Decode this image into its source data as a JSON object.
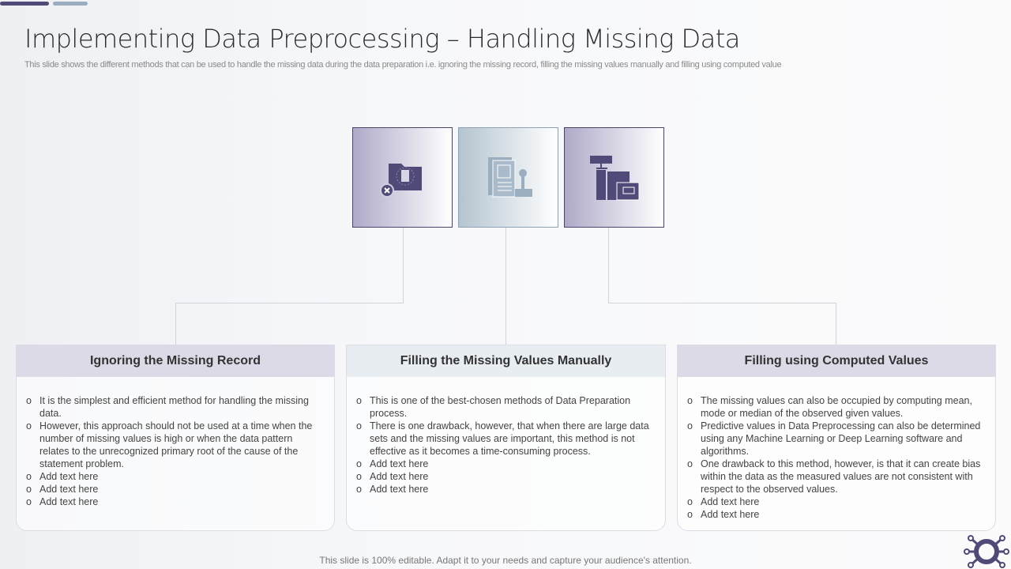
{
  "title": "Implementing Data Preprocessing – Handling Missing Data",
  "subtitle": "This slide shows the different methods that can be used to handle the missing data during the data preparation i.e. ignoring the missing record, filling the missing values manually and filling using computed value",
  "colors": {
    "accent": "#4f4a78",
    "secondary": "#9aaec0",
    "card_header_1": "#dcdae6",
    "card_header_2": "#e8edf1"
  },
  "icons": [
    "folder-delete-icon",
    "document-tools-icon",
    "data-storage-icon"
  ],
  "cards": [
    {
      "title": "Ignoring the Missing Record",
      "bullets": [
        "It is the simplest and efficient method for handling the missing data.",
        "However, this approach should not be used at a time when the number of missing values is high or when the data pattern relates to the unrecognized primary root of the cause of the statement problem.",
        "Add text here",
        "Add text here",
        "Add text here"
      ]
    },
    {
      "title": "Filling the Missing Values Manually",
      "bullets": [
        "This is one of the best-chosen methods of Data Preparation process.",
        "There is one drawback, however, that when there are large data sets and the missing values are important, this method is not effective as it becomes a time-consuming process.",
        "Add text here",
        "Add text here",
        "Add text here"
      ]
    },
    {
      "title": "Filling using Computed Values",
      "bullets": [
        "The missing values can also be occupied by computing mean, mode or median of the observed given values.",
        "Predictive values in Data Preprocessing can also be determined using any Machine Learning or Deep Learning software and algorithms.",
        "One drawback to this method, however, is that it can create bias within the data as the measured values are not consistent with respect to the observed values.",
        "Add text here",
        "Add text here"
      ]
    }
  ],
  "footer": "This slide is 100% editable. Adapt it to your needs and capture your audience's attention."
}
